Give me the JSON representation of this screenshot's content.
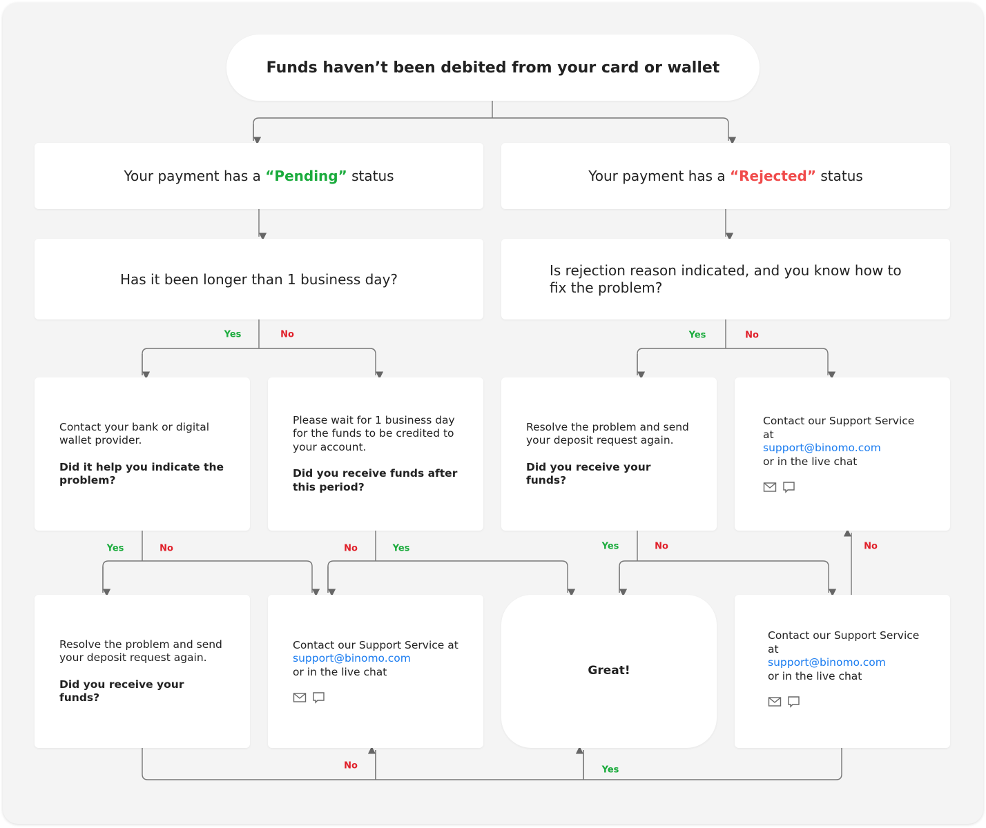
{
  "title": "Funds haven’t been debited from your card or wallet",
  "pending": {
    "pre": "Your payment has a ",
    "status": "“Pending”",
    "post": " status"
  },
  "rejected": {
    "pre": "Your payment has a ",
    "status": "“Rejected”",
    "post": " status"
  },
  "q_left": "Has it been longer than 1 business day?",
  "q_right": "Is rejection reason indicated, and you know how to fix the problem?",
  "cells": {
    "contact_bank": {
      "text": "Contact your bank or digital wallet provider.",
      "question": "Did it help you indicate the problem?"
    },
    "wait": {
      "text": "Please wait for 1 business day for the funds to be credited to your account.",
      "question": "Did you receive funds after this period?"
    },
    "resolve_right": {
      "text": "Resolve the problem and send your deposit request again.",
      "question": "Did you receive your funds?"
    },
    "support": {
      "line1": "Contact our Support Service at",
      "email": "support@binomo.com",
      "line2": "or in the live chat"
    },
    "resolve_left": {
      "text": "Resolve the problem and send your deposit request again.",
      "question": "Did you receive your funds?"
    },
    "great": "Great!"
  },
  "labels": {
    "yes": "Yes",
    "no": "No"
  },
  "colors": {
    "green": "#1aab3c",
    "red": "#e0202a",
    "link": "#1a7cf0"
  },
  "icons": [
    "mail-icon",
    "chat-icon"
  ]
}
